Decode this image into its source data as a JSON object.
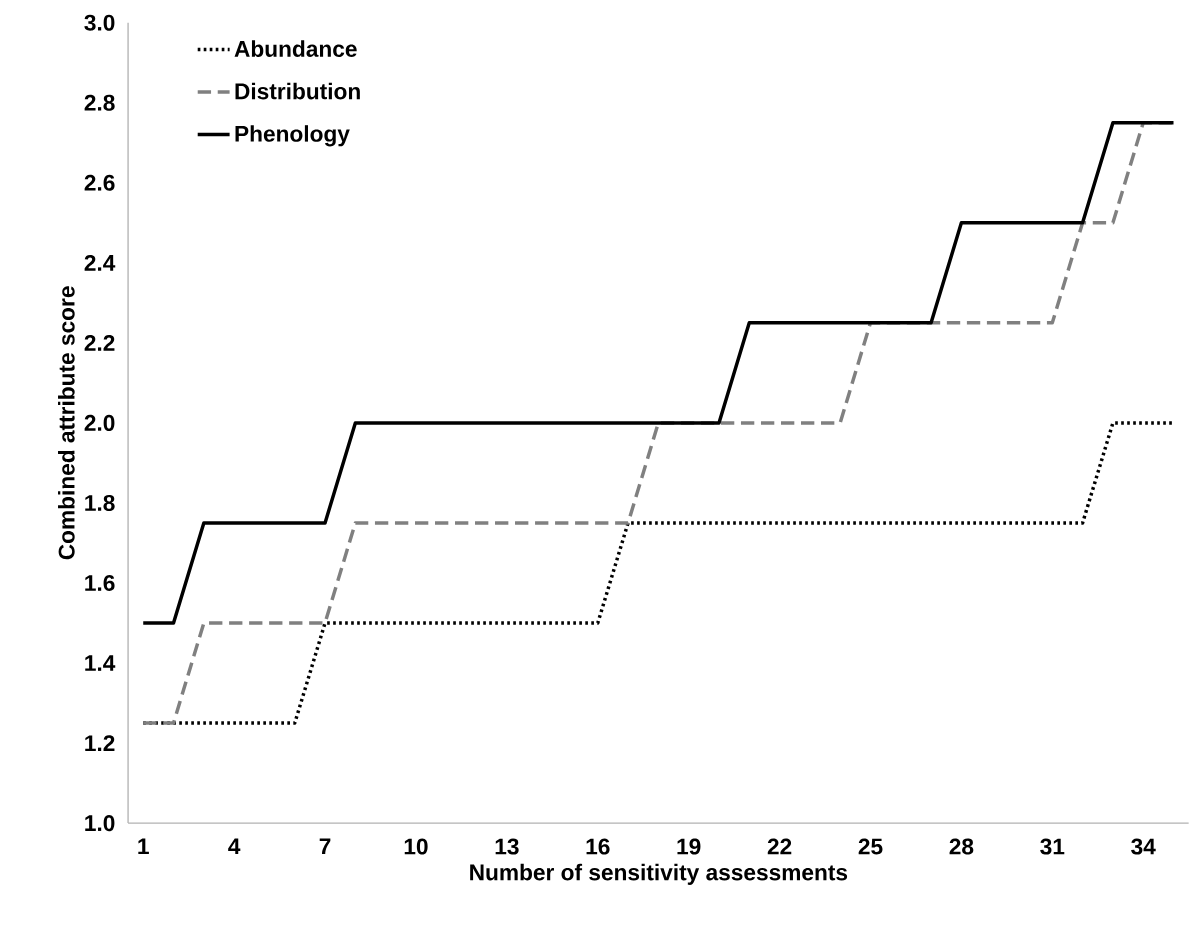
{
  "chart_data": {
    "type": "line",
    "xlabel": "Number of sensitivity assessments",
    "ylabel": "Combined attribute score",
    "x": [
      1,
      2,
      3,
      4,
      5,
      6,
      7,
      8,
      9,
      10,
      11,
      12,
      13,
      14,
      15,
      16,
      17,
      18,
      19,
      20,
      21,
      22,
      23,
      24,
      25,
      26,
      27,
      28,
      29,
      30,
      31,
      32,
      33,
      34,
      35
    ],
    "series": [
      {
        "name": "Abundance",
        "color": "#000000",
        "line_style": "dotted",
        "values": [
          1.25,
          1.25,
          1.25,
          1.25,
          1.25,
          1.25,
          1.5,
          1.5,
          1.5,
          1.5,
          1.5,
          1.5,
          1.5,
          1.5,
          1.5,
          1.5,
          1.75,
          1.75,
          1.75,
          1.75,
          1.75,
          1.75,
          1.75,
          1.75,
          1.75,
          1.75,
          1.75,
          1.75,
          1.75,
          1.75,
          1.75,
          1.75,
          2.0,
          2.0,
          2.0
        ]
      },
      {
        "name": "Distribution",
        "color": "#808080",
        "line_style": "dashed",
        "values": [
          1.25,
          1.25,
          1.5,
          1.5,
          1.5,
          1.5,
          1.5,
          1.75,
          1.75,
          1.75,
          1.75,
          1.75,
          1.75,
          1.75,
          1.75,
          1.75,
          1.75,
          2.0,
          null,
          2.0,
          2.0,
          2.0,
          2.0,
          2.0,
          2.25,
          2.25,
          2.25,
          2.25,
          2.25,
          2.25,
          2.25,
          2.5,
          2.5,
          2.75,
          2.75
        ]
      },
      {
        "name": "Phenology",
        "color": "#000000",
        "line_style": "solid",
        "values": [
          1.5,
          1.5,
          1.75,
          1.75,
          1.75,
          1.75,
          1.75,
          2.0,
          2.0,
          2.0,
          2.0,
          2.0,
          2.0,
          2.0,
          2.0,
          2.0,
          2.0,
          2.0,
          2.0,
          2.0,
          2.25,
          2.25,
          2.25,
          2.25,
          2.25,
          2.25,
          2.25,
          2.5,
          2.5,
          2.5,
          2.5,
          2.5,
          2.75,
          2.75,
          2.75
        ]
      }
    ],
    "xlim": [
      0.5,
      35.5
    ],
    "xticks": [
      1,
      4,
      7,
      10,
      13,
      16,
      19,
      22,
      25,
      28,
      31,
      34
    ],
    "ylim": [
      1.0,
      3.0
    ],
    "yticks": [
      {
        "value": 1.0,
        "label": "1.0"
      },
      {
        "value": 1.2,
        "label": "1.2"
      },
      {
        "value": 1.4,
        "label": "1.4"
      },
      {
        "value": 1.6,
        "label": "1.6"
      },
      {
        "value": 1.8,
        "label": "1.8"
      },
      {
        "value": 2.0,
        "label": "2.0"
      },
      {
        "value": 2.2,
        "label": "2.2"
      },
      {
        "value": 2.4,
        "label": "2.4"
      },
      {
        "value": 2.6,
        "label": "2.6"
      },
      {
        "value": 2.8,
        "label": "2.8"
      },
      {
        "value": 3.0,
        "label": "3.0"
      }
    ],
    "grid": false,
    "legend": "top left",
    "marker": "none"
  }
}
